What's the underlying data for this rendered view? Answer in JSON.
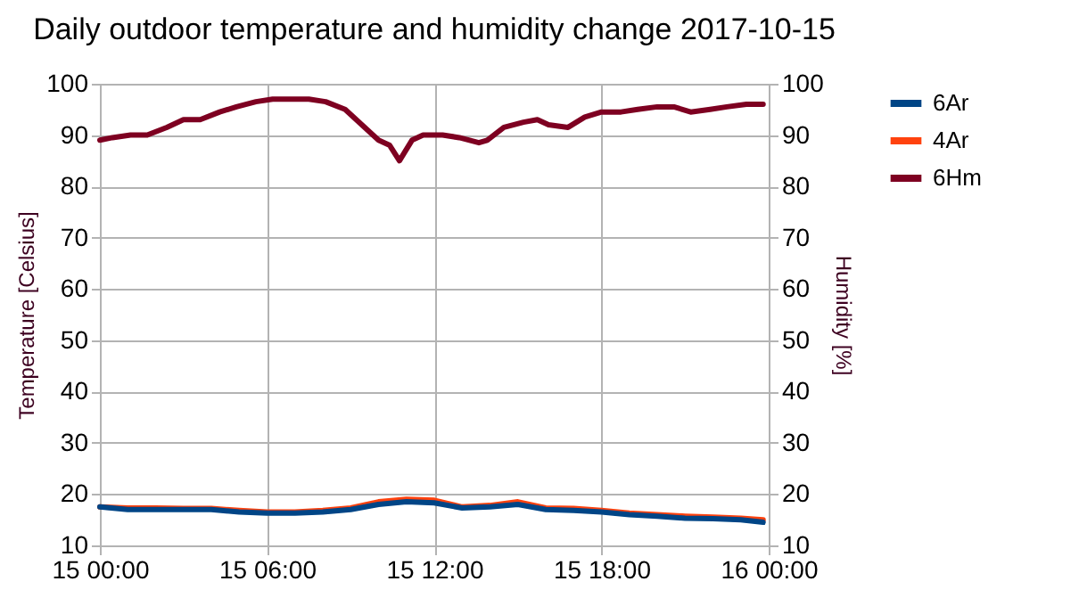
{
  "chart_data": {
    "type": "line",
    "title": "Daily outdoor temperature and humidity change 2017-10-15",
    "ylabel": "Temperature [Celsius]",
    "y2label": "Humidity [%]",
    "xlim": [
      "2017-10-15T00:00",
      "2017-10-16T00:00"
    ],
    "xticks": [
      {
        "value": "2017-10-15T00:00",
        "label": "15 00:00"
      },
      {
        "value": "2017-10-15T06:00",
        "label": "15 06:00"
      },
      {
        "value": "2017-10-15T12:00",
        "label": "15 12:00"
      },
      {
        "value": "2017-10-15T18:00",
        "label": "15 18:00"
      },
      {
        "value": "2017-10-16T00:00",
        "label": "16 00:00"
      }
    ],
    "ylim": [
      10,
      100
    ],
    "yticks": [
      10,
      20,
      30,
      40,
      50,
      60,
      70,
      80,
      90,
      100
    ],
    "y2lim": [
      10,
      100
    ],
    "y2ticks": [
      10,
      20,
      30,
      40,
      50,
      60,
      70,
      80,
      90,
      100
    ],
    "grid": true,
    "legend": "right",
    "line_style": "solid",
    "series": [
      {
        "name": "6Ar",
        "color": "#004586",
        "x": [
          "2017-10-15T00:00",
          "2017-10-15T01:00",
          "2017-10-15T02:00",
          "2017-10-15T03:00",
          "2017-10-15T04:00",
          "2017-10-15T05:00",
          "2017-10-15T06:00",
          "2017-10-15T07:00",
          "2017-10-15T08:00",
          "2017-10-15T09:00",
          "2017-10-15T10:00",
          "2017-10-15T11:00",
          "2017-10-15T12:00",
          "2017-10-15T13:00",
          "2017-10-15T14:00",
          "2017-10-15T15:00",
          "2017-10-15T16:00",
          "2017-10-15T17:00",
          "2017-10-15T18:00",
          "2017-10-15T19:00",
          "2017-10-15T20:00",
          "2017-10-15T21:00",
          "2017-10-15T22:00",
          "2017-10-15T23:00",
          "2017-10-15T23:48"
        ],
        "values": [
          17.5,
          17,
          17,
          17,
          17,
          16.5,
          16.3,
          16.3,
          16.5,
          17,
          18,
          18.5,
          18.3,
          17.3,
          17.5,
          18,
          17,
          16.8,
          16.5,
          16,
          15.7,
          15.3,
          15.2,
          15,
          14.5
        ]
      },
      {
        "name": "4Ar",
        "color": "#ff420e",
        "x": [
          "2017-10-15T00:00",
          "2017-10-15T01:00",
          "2017-10-15T02:00",
          "2017-10-15T03:00",
          "2017-10-15T04:00",
          "2017-10-15T05:00",
          "2017-10-15T06:00",
          "2017-10-15T07:00",
          "2017-10-15T08:00",
          "2017-10-15T09:00",
          "2017-10-15T10:00",
          "2017-10-15T11:00",
          "2017-10-15T12:00",
          "2017-10-15T13:00",
          "2017-10-15T14:00",
          "2017-10-15T15:00",
          "2017-10-15T16:00",
          "2017-10-15T17:00",
          "2017-10-15T18:00",
          "2017-10-15T19:00",
          "2017-10-15T20:00",
          "2017-10-15T21:00",
          "2017-10-15T22:00",
          "2017-10-15T23:00",
          "2017-10-15T23:48"
        ],
        "values": [
          17.5,
          17.3,
          17.3,
          17.2,
          17.2,
          16.8,
          16.5,
          16.5,
          16.8,
          17.3,
          18.5,
          19,
          18.8,
          17.5,
          17.8,
          18.5,
          17.3,
          17.2,
          16.8,
          16.3,
          16,
          15.7,
          15.5,
          15.3,
          15
        ]
      },
      {
        "name": "6Hm",
        "color": "#7e0021",
        "axis": "y2",
        "x": [
          "2017-10-15T00:00",
          "2017-10-15T00:27",
          "2017-10-15T01:06",
          "2017-10-15T01:42",
          "2017-10-15T02:24",
          "2017-10-15T03:00",
          "2017-10-15T03:36",
          "2017-10-15T04:18",
          "2017-10-15T04:54",
          "2017-10-15T05:36",
          "2017-10-15T06:12",
          "2017-10-15T06:48",
          "2017-10-15T07:30",
          "2017-10-15T08:06",
          "2017-10-15T08:48",
          "2017-10-15T09:24",
          "2017-10-15T10:00",
          "2017-10-15T10:24",
          "2017-10-15T10:45",
          "2017-10-15T11:12",
          "2017-10-15T11:36",
          "2017-10-15T12:18",
          "2017-10-15T12:54",
          "2017-10-15T13:36",
          "2017-10-15T13:54",
          "2017-10-15T14:30",
          "2017-10-15T15:12",
          "2017-10-15T15:42",
          "2017-10-15T16:06",
          "2017-10-15T16:48",
          "2017-10-15T17:24",
          "2017-10-15T18:00",
          "2017-10-15T18:42",
          "2017-10-15T19:18",
          "2017-10-15T20:00",
          "2017-10-15T20:36",
          "2017-10-15T21:12",
          "2017-10-15T21:54",
          "2017-10-15T22:30",
          "2017-10-15T23:12",
          "2017-10-15T23:48"
        ],
        "values": [
          89,
          89.5,
          90,
          90,
          91.5,
          93,
          93,
          94.5,
          95.5,
          96.5,
          97,
          97,
          97,
          96.5,
          95,
          92,
          89,
          88,
          85,
          89,
          90,
          90,
          89.5,
          88.5,
          89,
          91.5,
          92.5,
          93,
          92,
          91.5,
          93.5,
          94.5,
          94.5,
          95,
          95.5,
          95.5,
          94.5,
          95,
          95.5,
          96,
          96
        ]
      }
    ]
  }
}
